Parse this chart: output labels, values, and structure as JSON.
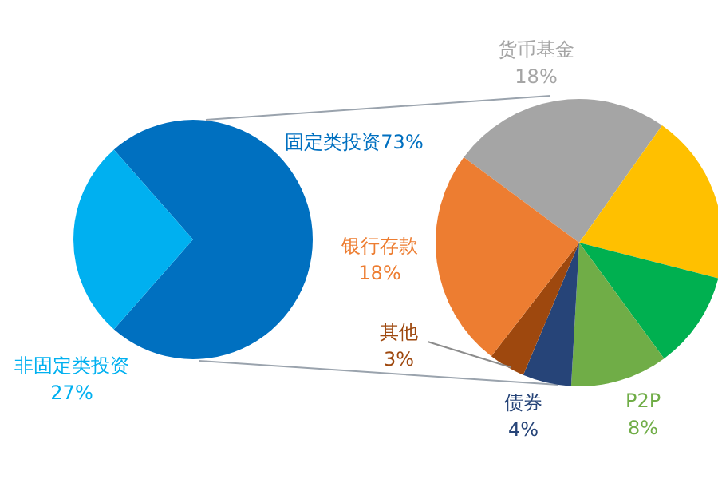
{
  "chart_data": [
    {
      "type": "pie",
      "categories": [
        "固定类投资",
        "非固定类投资"
      ],
      "values": [
        73,
        27
      ],
      "colors": [
        "#0070c0",
        "#00b0f0"
      ],
      "value_labels": [
        "73%",
        "27%"
      ]
    },
    {
      "type": "pie",
      "categories": [
        "货币基金",
        null,
        null,
        "P2P",
        "债券",
        "其他",
        "银行存款"
      ],
      "values": [
        18,
        14,
        8,
        8,
        4,
        3,
        18
      ],
      "colors": [
        "#a5a5a5",
        "#ffc000",
        "#00b050",
        "#70ad47",
        "#264478",
        "#9e480e",
        "#ed7d31"
      ],
      "value_labels": [
        "18%",
        null,
        null,
        "8%",
        "4%",
        "3%",
        "18%"
      ]
    }
  ]
}
